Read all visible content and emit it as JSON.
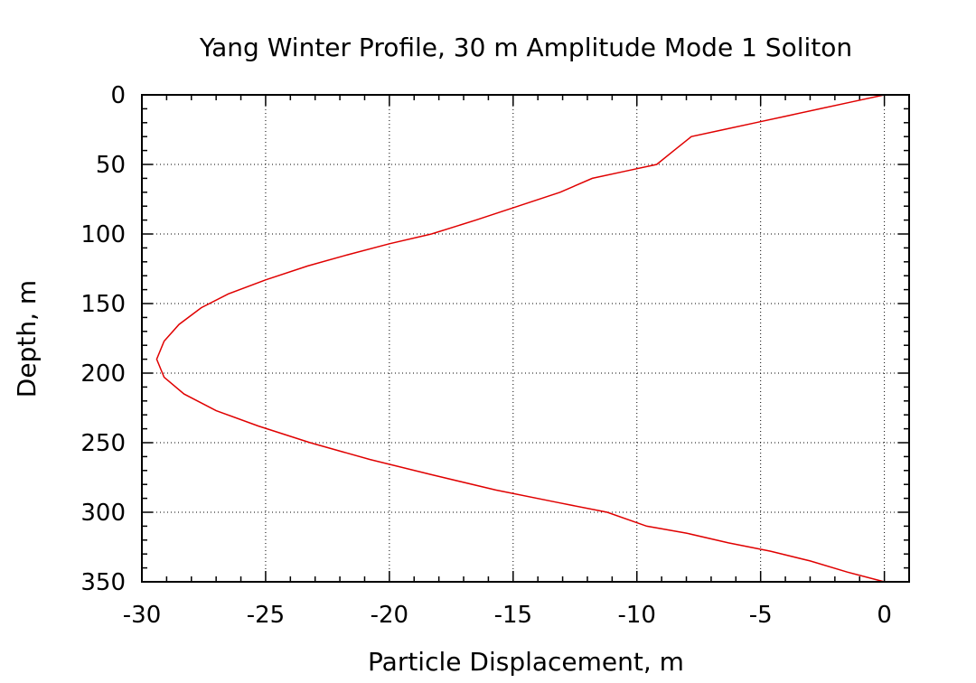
{
  "chart_data": {
    "type": "line",
    "title": "Yang Winter Profile, 30 m Amplitude Mode 1 Soliton",
    "xlabel": "Particle Displacement, m",
    "ylabel": "Depth, m",
    "xlim": [
      -30,
      1
    ],
    "ylim": [
      350,
      0
    ],
    "y_inverted": true,
    "grid": true,
    "xticks": [
      -30,
      -25,
      -20,
      -15,
      -10,
      -5,
      0
    ],
    "yticks": [
      0,
      50,
      100,
      150,
      200,
      250,
      300,
      350
    ],
    "series": [
      {
        "color": "#e00000",
        "points": [
          [
            0,
            0
          ],
          [
            -1.3,
            5
          ],
          [
            -2.6,
            10
          ],
          [
            -3.9,
            15
          ],
          [
            -5.2,
            20
          ],
          [
            -6.5,
            25
          ],
          [
            -7.8,
            30
          ],
          [
            -8.5,
            40
          ],
          [
            -9.2,
            50
          ],
          [
            -10.5,
            55
          ],
          [
            -11.8,
            60
          ],
          [
            -13.1,
            70
          ],
          [
            -14.8,
            80
          ],
          [
            -16.5,
            90
          ],
          [
            -18.3,
            100
          ],
          [
            -20.0,
            107
          ],
          [
            -21.7,
            115
          ],
          [
            -23.3,
            123
          ],
          [
            -25.0,
            133
          ],
          [
            -26.5,
            143
          ],
          [
            -27.6,
            153
          ],
          [
            -28.5,
            165
          ],
          [
            -29.1,
            177
          ],
          [
            -29.4,
            190
          ],
          [
            -29.1,
            203
          ],
          [
            -28.3,
            215
          ],
          [
            -27.0,
            227
          ],
          [
            -25.3,
            238
          ],
          [
            -23.2,
            250
          ],
          [
            -20.8,
            262
          ],
          [
            -18.3,
            273
          ],
          [
            -15.7,
            284
          ],
          [
            -13.2,
            293
          ],
          [
            -11.2,
            300
          ],
          [
            -9.6,
            310
          ],
          [
            -8.0,
            315
          ],
          [
            -6.3,
            322
          ],
          [
            -4.6,
            328
          ],
          [
            -3.0,
            335
          ],
          [
            -1.5,
            343
          ],
          [
            0,
            350
          ]
        ]
      }
    ]
  }
}
